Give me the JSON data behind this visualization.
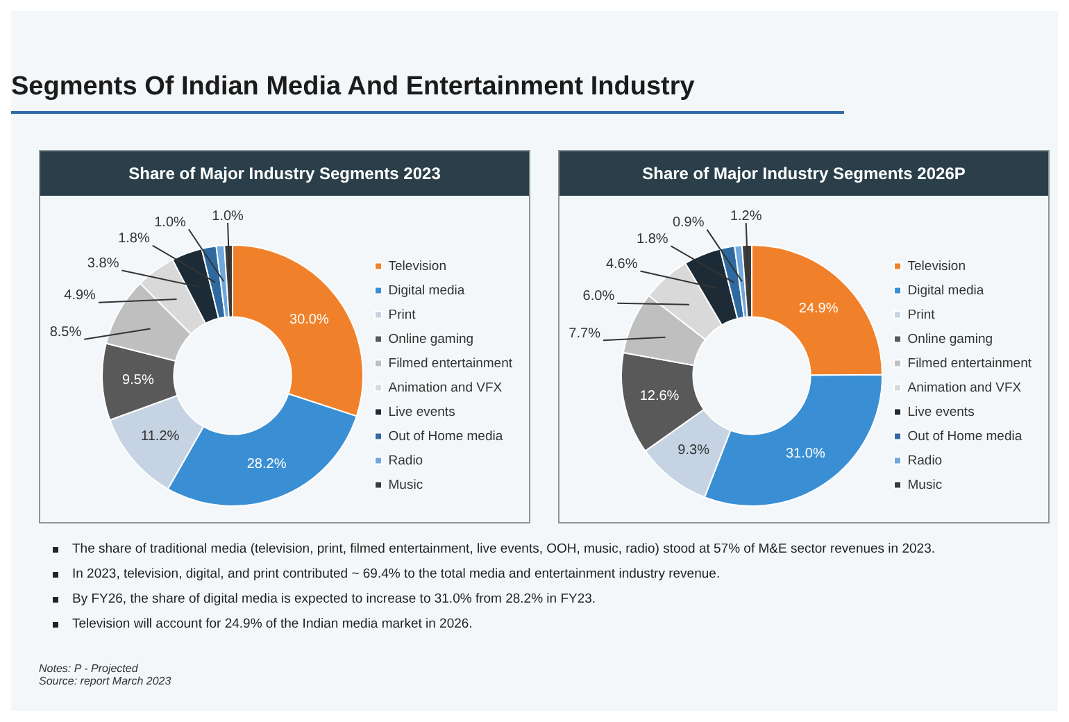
{
  "chart_data": [
    {
      "type": "other",
      "title": "Segments Of Indian Media And Entertainment Industry"
    },
    {
      "type": "donut",
      "title": "Share of Major Industry Segments 2023",
      "categories": [
        "Television",
        "Digital media",
        "Print",
        "Online gaming",
        "Filmed entertainment",
        "Animation and VFX",
        "Live events",
        "Out of Home media",
        "Radio",
        "Music"
      ],
      "values": [
        30.0,
        28.2,
        11.2,
        9.5,
        8.5,
        4.9,
        3.8,
        1.8,
        1.0,
        1.0
      ],
      "value_labels": [
        "30.0%",
        "28.2%",
        "11.2%",
        "9.5%",
        "8.5%",
        "4.9%",
        "3.8%",
        "1.8%",
        "1.0%",
        "1.0%"
      ],
      "colors": [
        "#f0812a",
        "#3a8fd4",
        "#c5d3e3",
        "#595959",
        "#bfbfbf",
        "#d9d9d9",
        "#1c2b36",
        "#2e6aa0",
        "#6fa8dc",
        "#3b3b3b"
      ],
      "legend": "right"
    },
    {
      "type": "donut",
      "title": "Share of Major Industry Segments 2026P",
      "categories": [
        "Television",
        "Digital media",
        "Print",
        "Online gaming",
        "Filmed entertainment",
        "Animation and VFX",
        "Live events",
        "Out of Home media",
        "Radio",
        "Music"
      ],
      "values": [
        24.9,
        31.0,
        9.3,
        12.6,
        7.7,
        6.0,
        4.6,
        1.8,
        0.9,
        1.2
      ],
      "value_labels": [
        "24.9%",
        "31.0%",
        "9.3%",
        "12.6%",
        "7.7%",
        "6.0%",
        "4.6%",
        "1.8%",
        "0.9%",
        "1.2%"
      ],
      "colors": [
        "#f0812a",
        "#3a8fd4",
        "#c5d3e3",
        "#595959",
        "#bfbfbf",
        "#d9d9d9",
        "#1c2b36",
        "#2e6aa0",
        "#6fa8dc",
        "#3b3b3b"
      ],
      "legend": "right"
    },
    {
      "type": "other",
      "annotations": [
        "The share of traditional media (television, print, filmed entertainment, live events, OOH, music, radio) stood at 57% of M&E sector revenues in 2023.",
        "In 2023, television, digital, and print contributed ~ 69.4% to the total media and entertainment industry revenue.",
        "By FY26, the share of digital media is expected to increase to 31.0% from 28.2% in FY23.",
        "Television will account for 24.9% of the Indian media market in 2026.",
        "Notes: P - Projected",
        "Source: report March 2023"
      ]
    }
  ]
}
